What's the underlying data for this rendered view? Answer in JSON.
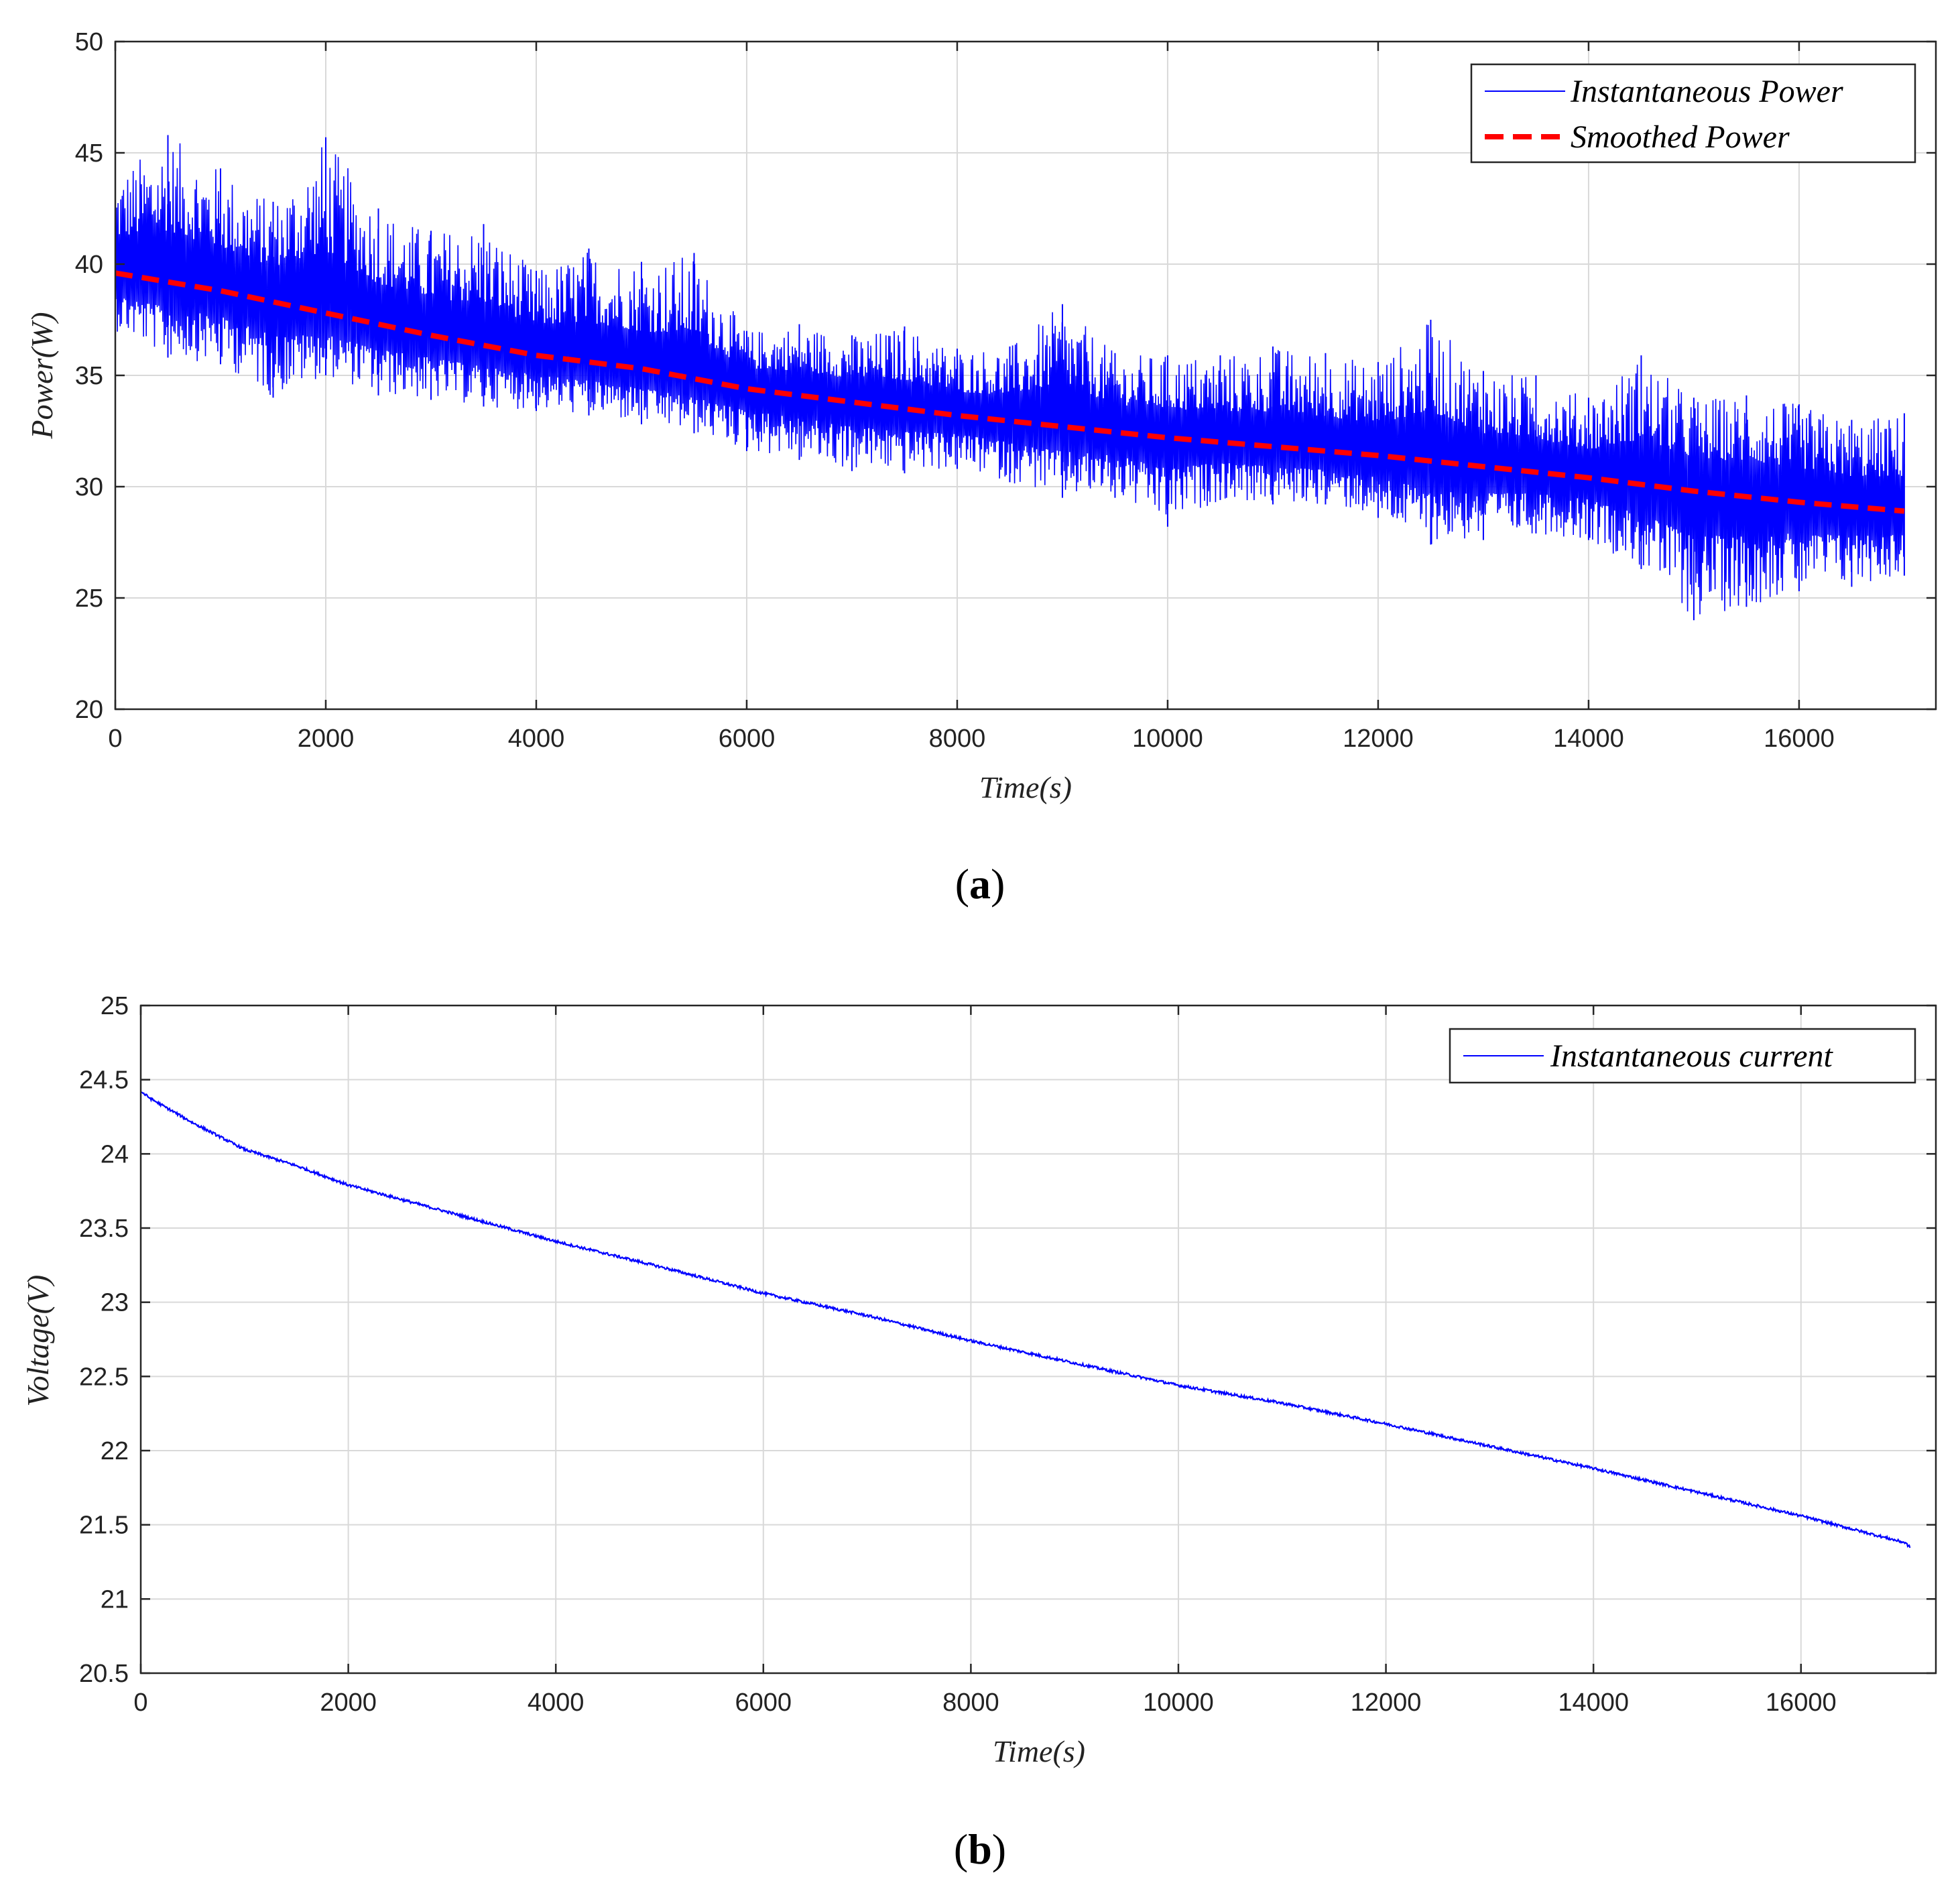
{
  "colors": {
    "instantaneous": "#0000ff",
    "smoothed": "#ff0000",
    "grid": "#d9d9d9",
    "axis": "#262626"
  },
  "chart_data": [
    {
      "type": "line",
      "panel_label": "(a)",
      "panel_letter": "a",
      "title": "",
      "xlabel": "Time(s)",
      "ylabel": "Power(W)",
      "xlim": [
        0,
        17300
      ],
      "ylim": [
        20,
        50
      ],
      "xticks": [
        0,
        2000,
        4000,
        6000,
        8000,
        10000,
        12000,
        14000,
        16000
      ],
      "xtick_labels": [
        "0",
        "2000",
        "4000",
        "6000",
        "8000",
        "10000",
        "12000",
        "14000",
        "16000"
      ],
      "yticks": [
        20,
        25,
        30,
        35,
        40,
        45,
        50
      ],
      "ytick_labels": [
        "20",
        "25",
        "30",
        "35",
        "40",
        "45",
        "50"
      ],
      "grid": true,
      "legend_position": "top-right",
      "series": [
        {
          "name": "Instantaneous Power",
          "style": "solid-noisy",
          "x": [
            0,
            500,
            1000,
            1500,
            2000,
            2500,
            3000,
            3500,
            4000,
            4500,
            5000,
            5500,
            6000,
            6500,
            7000,
            7500,
            8000,
            8500,
            9000,
            9500,
            10000,
            10500,
            11000,
            11500,
            12000,
            12500,
            13000,
            13500,
            14000,
            14500,
            15000,
            15500,
            16000,
            16500,
            17000
          ],
          "upper_envelope": [
            44.0,
            45.8,
            44.3,
            42.8,
            45.7,
            42.5,
            41.5,
            41.8,
            39.7,
            40.7,
            40.1,
            40.5,
            37.0,
            37.3,
            36.8,
            37.2,
            36.2,
            36.3,
            38.2,
            36.0,
            35.9,
            35.9,
            36.3,
            36.0,
            35.6,
            37.5,
            35.2,
            35.0,
            34.0,
            35.9,
            34.0,
            34.1,
            33.7,
            33.0,
            33.3
          ],
          "lower_envelope": [
            37.0,
            35.8,
            35.5,
            34.0,
            35.0,
            34.1,
            33.9,
            33.6,
            33.4,
            33.2,
            32.8,
            32.4,
            31.6,
            31.2,
            30.7,
            30.6,
            30.8,
            30.2,
            29.5,
            29.5,
            28.2,
            29.4,
            29.2,
            29.2,
            28.6,
            27.4,
            27.6,
            27.9,
            27.6,
            26.3,
            24.0,
            24.6,
            25.3,
            25.5,
            26.0
          ]
        },
        {
          "name": "Smoothed Power",
          "style": "dashed",
          "x": [
            0,
            1000,
            2000,
            3000,
            4000,
            5000,
            6000,
            7000,
            8000,
            9000,
            10000,
            11000,
            12000,
            13000,
            14000,
            15000,
            16000,
            17000
          ],
          "values": [
            39.6,
            38.8,
            37.8,
            36.8,
            35.9,
            35.3,
            34.4,
            33.8,
            33.2,
            32.7,
            32.2,
            31.8,
            31.4,
            30.9,
            30.4,
            29.8,
            29.3,
            28.9
          ]
        }
      ]
    },
    {
      "type": "line",
      "panel_label": "(b)",
      "panel_letter": "b",
      "title": "",
      "xlabel": "Time(s)",
      "ylabel": "Voltage(V)",
      "xlim": [
        0,
        17300
      ],
      "ylim": [
        20.5,
        25
      ],
      "xticks": [
        0,
        2000,
        4000,
        6000,
        8000,
        10000,
        12000,
        14000,
        16000
      ],
      "xtick_labels": [
        "0",
        "2000",
        "4000",
        "6000",
        "8000",
        "10000",
        "12000",
        "14000",
        "16000"
      ],
      "yticks": [
        20.5,
        21,
        21.5,
        22,
        22.5,
        23,
        23.5,
        24,
        24.5,
        25
      ],
      "ytick_labels": [
        "20.5",
        "21",
        "21.5",
        "22",
        "22.5",
        "23",
        "23.5",
        "24",
        "24.5",
        "25"
      ],
      "grid": true,
      "legend_position": "top-right",
      "series": [
        {
          "name": "Instantaneous current",
          "style": "solid",
          "x": [
            0,
            100,
            300,
            500,
            1000,
            1500,
            2000,
            3000,
            4000,
            5000,
            6000,
            7000,
            8000,
            9000,
            10000,
            11000,
            12000,
            13000,
            14000,
            15000,
            16000,
            17000,
            17050
          ],
          "values": [
            24.42,
            24.37,
            24.29,
            24.21,
            24.03,
            23.92,
            23.79,
            23.6,
            23.41,
            23.24,
            23.06,
            22.91,
            22.74,
            22.59,
            22.44,
            22.32,
            22.18,
            22.03,
            21.88,
            21.72,
            21.56,
            21.38,
            21.35
          ]
        }
      ]
    }
  ]
}
